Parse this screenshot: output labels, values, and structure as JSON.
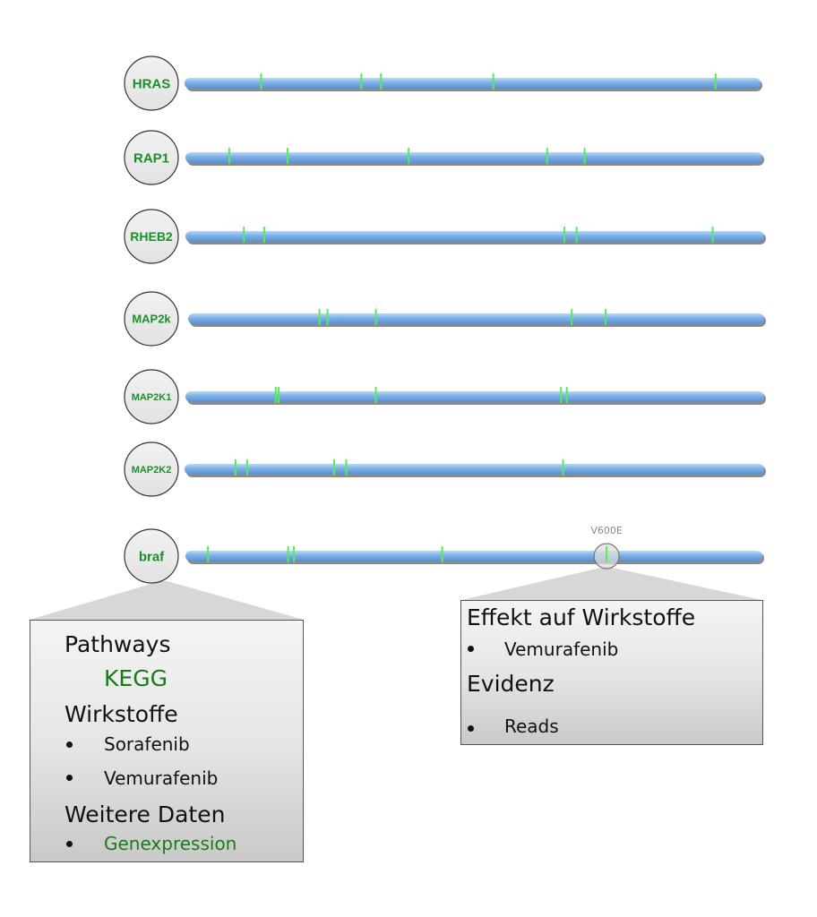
{
  "genes": [
    {
      "label": "HRAS",
      "mutations": [
        0.133,
        0.307,
        0.341,
        0.536,
        0.922
      ]
    },
    {
      "label": "RAP1",
      "mutations": [
        0.076,
        0.177,
        0.387,
        0.627,
        0.692
      ]
    },
    {
      "label": "RHEB2",
      "mutations": [
        0.101,
        0.136,
        0.655,
        0.676,
        0.911
      ]
    },
    {
      "label": "MAP2k",
      "mutations": [
        0.228,
        0.242,
        0.326,
        0.666,
        0.725
      ]
    },
    {
      "label": "MAP2K1",
      "mutations": [
        0.156,
        0.161,
        0.329,
        0.649,
        0.659
      ]
    },
    {
      "label": "MAP2K2",
      "mutations": [
        0.088,
        0.108,
        0.258,
        0.279,
        0.653
      ]
    },
    {
      "label": "braf",
      "mutations": [
        0.039,
        0.178,
        0.188,
        0.445,
        0.73
      ],
      "highlight_index": 4
    }
  ],
  "highlight": {
    "label": "V600E"
  },
  "colors": {
    "track": "#7ab0e6",
    "mutation": "#55ee55",
    "gene_text": "#1a8f2a",
    "link_text": "#1a7a1a"
  },
  "left_panel": {
    "pathways_title": "Pathways",
    "pathways_link": "KEGG",
    "drugs_title": "Wirkstoffe",
    "drugs": [
      "Sorafenib",
      "Vemurafenib"
    ],
    "more_title": "Weitere Daten",
    "more_items": [
      "Genexpression"
    ]
  },
  "right_panel": {
    "effect_title": "Effekt auf Wirkstoffe",
    "effect_items": [
      "Vemurafenib"
    ],
    "evidence_title": "Evidenz",
    "evidence_items": [
      "Reads"
    ]
  }
}
